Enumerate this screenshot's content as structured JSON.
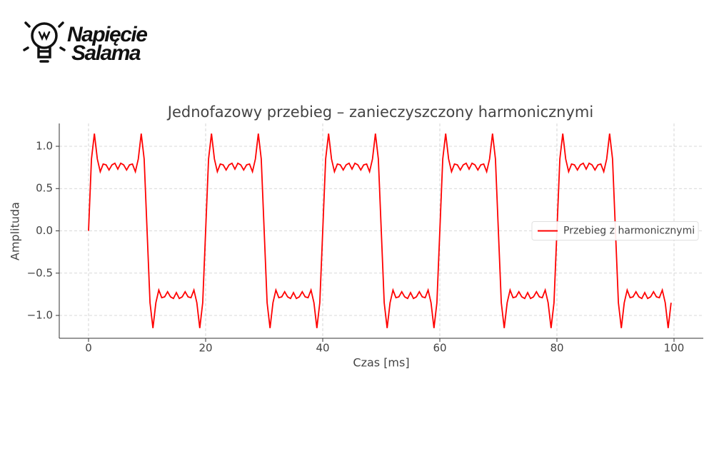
{
  "logo": {
    "line1": "Napięcie",
    "line2": "Salama"
  },
  "chart_data": {
    "type": "line",
    "title": "Jednofazowy przebieg – zanieczyszczony harmonicznymi",
    "x_label": "Czas [ms]",
    "y_label": "Amplituda",
    "x": [
      0,
      0.5,
      1,
      1.5,
      2,
      2.5,
      3,
      3.5,
      4,
      4.5,
      5,
      5.5,
      6,
      6.5,
      7,
      7.5,
      8,
      8.5,
      9,
      9.5,
      10,
      10.5,
      11,
      11.5,
      12,
      12.5,
      13,
      13.5,
      14,
      14.5,
      15,
      15.5,
      16,
      16.5,
      17,
      17.5,
      18,
      18.5,
      19,
      19.5,
      20,
      20.5,
      21,
      21.5,
      22,
      22.5,
      23,
      23.5,
      24,
      24.5,
      25,
      25.5,
      26,
      26.5,
      27,
      27.5,
      28,
      28.5,
      29,
      29.5,
      30,
      30.5,
      31,
      31.5,
      32,
      32.5,
      33,
      33.5,
      34,
      34.5,
      35,
      35.5,
      36,
      36.5,
      37,
      37.5,
      38,
      38.5,
      39,
      39.5,
      40,
      40.5,
      41,
      41.5,
      42,
      42.5,
      43,
      43.5,
      44,
      44.5,
      45,
      45.5,
      46,
      46.5,
      47,
      47.5,
      48,
      48.5,
      49,
      49.5,
      50,
      50.5,
      51,
      51.5,
      52,
      52.5,
      53,
      53.5,
      54,
      54.5,
      55,
      55.5,
      56,
      56.5,
      57,
      57.5,
      58,
      58.5,
      59,
      59.5,
      60,
      60.5,
      61,
      61.5,
      62,
      62.5,
      63,
      63.5,
      64,
      64.5,
      65,
      65.5,
      66,
      66.5,
      67,
      67.5,
      68,
      68.5,
      69,
      69.5,
      70,
      70.5,
      71,
      71.5,
      72,
      72.5,
      73,
      73.5,
      74,
      74.5,
      75,
      75.5,
      76,
      76.5,
      77,
      77.5,
      78,
      78.5,
      79,
      79.5,
      80,
      80.5,
      81,
      81.5,
      82,
      82.5,
      83,
      83.5,
      84,
      84.5,
      85,
      85.5,
      86,
      86.5,
      87,
      87.5,
      88,
      88.5,
      89,
      89.5,
      90,
      90.5,
      91,
      91.5,
      92,
      92.5,
      93,
      93.5,
      94,
      94.5,
      95,
      95.5,
      96,
      96.5,
      97,
      97.5,
      98,
      98.5,
      99,
      99.5
    ],
    "series": [
      {
        "name": "Przebieg z harmonicznymi",
        "color": "#ff0000",
        "values": [
          0,
          0.85,
          1.15,
          0.85,
          0.7,
          0.79,
          0.78,
          0.72,
          0.78,
          0.8,
          0.73,
          0.8,
          0.78,
          0.72,
          0.78,
          0.79,
          0.7,
          0.85,
          1.15,
          0.85,
          0,
          -0.85,
          -1.15,
          -0.85,
          -0.7,
          -0.79,
          -0.78,
          -0.72,
          -0.78,
          -0.8,
          -0.73,
          -0.8,
          -0.78,
          -0.72,
          -0.78,
          -0.79,
          -0.7,
          -0.85,
          -1.15,
          -0.85,
          0,
          0.85,
          1.15,
          0.85,
          0.7,
          0.79,
          0.78,
          0.72,
          0.78,
          0.8,
          0.73,
          0.8,
          0.78,
          0.72,
          0.78,
          0.79,
          0.7,
          0.85,
          1.15,
          0.85,
          0,
          -0.85,
          -1.15,
          -0.85,
          -0.7,
          -0.79,
          -0.78,
          -0.72,
          -0.78,
          -0.8,
          -0.73,
          -0.8,
          -0.78,
          -0.72,
          -0.78,
          -0.79,
          -0.7,
          -0.85,
          -1.15,
          -0.85,
          0,
          0.85,
          1.15,
          0.85,
          0.7,
          0.79,
          0.78,
          0.72,
          0.78,
          0.8,
          0.73,
          0.8,
          0.78,
          0.72,
          0.78,
          0.79,
          0.7,
          0.85,
          1.15,
          0.85,
          0,
          -0.85,
          -1.15,
          -0.85,
          -0.7,
          -0.79,
          -0.78,
          -0.72,
          -0.78,
          -0.8,
          -0.73,
          -0.8,
          -0.78,
          -0.72,
          -0.78,
          -0.79,
          -0.7,
          -0.85,
          -1.15,
          -0.85,
          0,
          0.85,
          1.15,
          0.85,
          0.7,
          0.79,
          0.78,
          0.72,
          0.78,
          0.8,
          0.73,
          0.8,
          0.78,
          0.72,
          0.78,
          0.79,
          0.7,
          0.85,
          1.15,
          0.85,
          0,
          -0.85,
          -1.15,
          -0.85,
          -0.7,
          -0.79,
          -0.78,
          -0.72,
          -0.78,
          -0.8,
          -0.73,
          -0.8,
          -0.78,
          -0.72,
          -0.78,
          -0.79,
          -0.7,
          -0.85,
          -1.15,
          -0.85,
          0,
          0.85,
          1.15,
          0.85,
          0.7,
          0.79,
          0.78,
          0.72,
          0.78,
          0.8,
          0.73,
          0.8,
          0.78,
          0.72,
          0.78,
          0.79,
          0.7,
          0.85,
          1.15,
          0.85,
          0,
          -0.85,
          -1.15,
          -0.85,
          -0.7,
          -0.79,
          -0.78,
          -0.72,
          -0.78,
          -0.8,
          -0.73,
          -0.8,
          -0.78,
          -0.72,
          -0.78,
          -0.79,
          -0.7,
          -0.85,
          -1.15,
          -0.85
        ]
      }
    ],
    "xlim": [
      -5,
      105
    ],
    "ylim": [
      -1.27,
      1.27
    ],
    "xticks": [
      0,
      20,
      40,
      60,
      80,
      100
    ],
    "yticks": [
      {
        "value": -1,
        "label": "−1.0"
      },
      {
        "value": -0.5,
        "label": "−0.5"
      },
      {
        "value": 0,
        "label": "0.0"
      },
      {
        "value": 0.5,
        "label": "0.5"
      },
      {
        "value": 1,
        "label": "1.0"
      }
    ],
    "grid": true,
    "legend": "center right"
  }
}
